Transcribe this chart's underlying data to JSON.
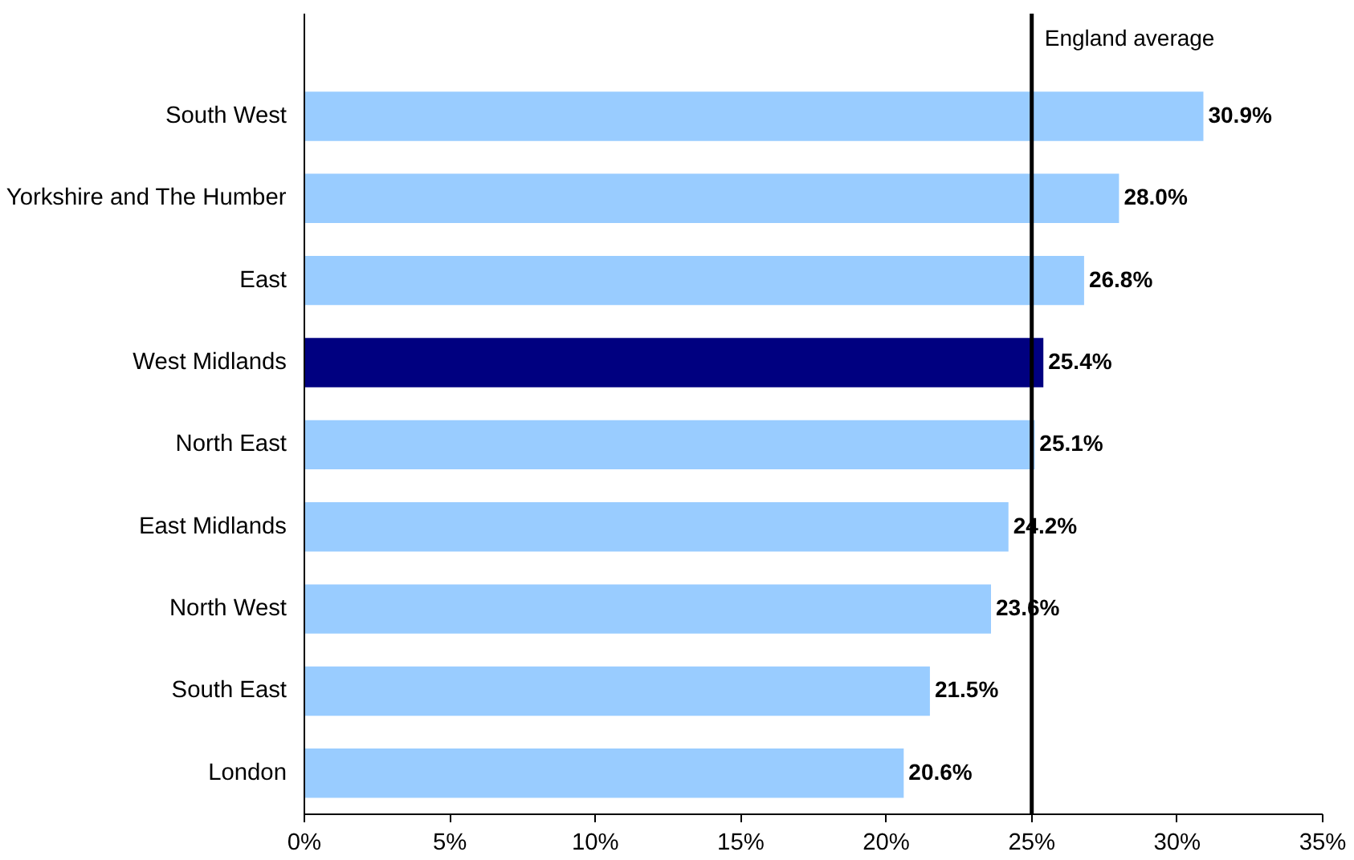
{
  "chart_data": {
    "type": "bar",
    "orientation": "horizontal",
    "categories": [
      "South West",
      "Yorkshire and The Humber",
      "East",
      "West Midlands",
      "North East",
      "East Midlands",
      "North West",
      "South East",
      "London"
    ],
    "values": [
      30.9,
      28.0,
      26.8,
      25.4,
      25.1,
      24.2,
      23.6,
      21.5,
      20.6
    ],
    "colors": [
      "#99ccff",
      "#99ccff",
      "#99ccff",
      "#000080",
      "#99ccff",
      "#99ccff",
      "#99ccff",
      "#99ccff",
      "#99ccff"
    ],
    "value_labels": [
      "30.9%",
      "28.0%",
      "26.8%",
      "25.4%",
      "25.1%",
      "24.2%",
      "23.6%",
      "21.5%",
      "20.6%"
    ],
    "xlim": [
      0,
      35
    ],
    "xticks": [
      {
        "value": 0,
        "label": "0%"
      },
      {
        "value": 5,
        "label": "5%"
      },
      {
        "value": 10,
        "label": "10%"
      },
      {
        "value": 15,
        "label": "15%"
      },
      {
        "value": 20,
        "label": "20%"
      },
      {
        "value": 25,
        "label": "25%"
      },
      {
        "value": 30,
        "label": "30%"
      },
      {
        "value": 35,
        "label": "35%"
      }
    ],
    "ref_lines": [
      {
        "axis": "x",
        "value": 25,
        "label": "England average",
        "color": "#000000"
      }
    ],
    "grid": false
  }
}
